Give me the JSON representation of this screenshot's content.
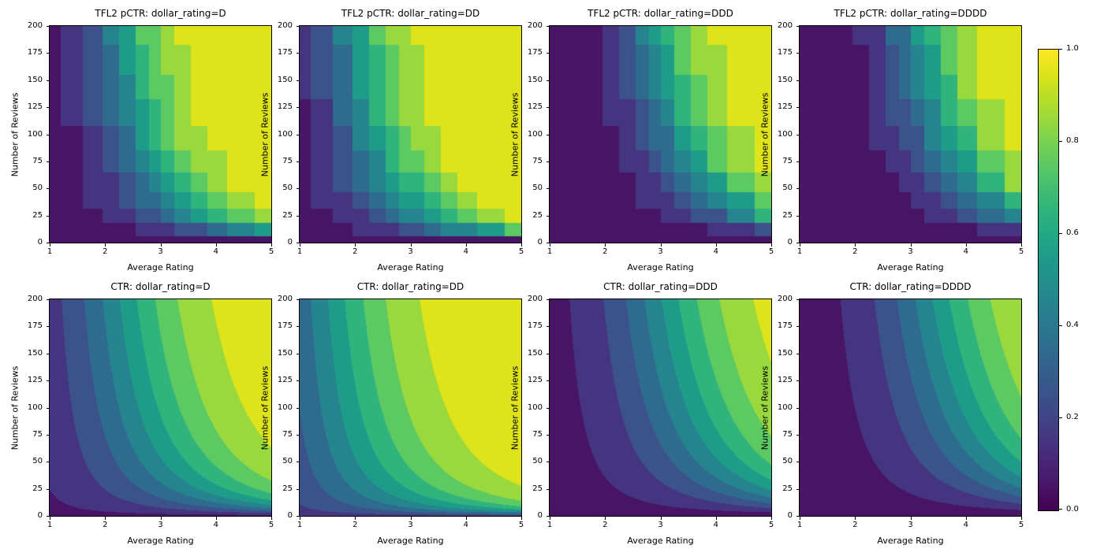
{
  "figure": {
    "background": "#ffffff",
    "text_color": "#000000"
  },
  "colormap": {
    "name": "viridis",
    "stops": [
      "#440154",
      "#481567",
      "#482677",
      "#453781",
      "#404788",
      "#39568c",
      "#33638d",
      "#2d708e",
      "#287d8e",
      "#238a8d",
      "#1f968b",
      "#20a387",
      "#29af7f",
      "#3cbb75",
      "#55c667",
      "#73d055",
      "#95d840",
      "#b8de29",
      "#dce319",
      "#fde725"
    ]
  },
  "levels": [
    0.0,
    0.1,
    0.2,
    0.3,
    0.4,
    0.5,
    0.6,
    0.7,
    0.8,
    0.9,
    1.0
  ],
  "axes": {
    "xlabel": "Average Rating",
    "ylabel": "Number of Reviews",
    "xlim": [
      1,
      5
    ],
    "ylim": [
      0,
      200
    ],
    "xticks": [
      1,
      2,
      3,
      4,
      5
    ],
    "yticks": [
      0,
      25,
      50,
      75,
      100,
      125,
      150,
      175,
      200
    ]
  },
  "colorbar": {
    "min": 0.0,
    "max": 1.0,
    "ticks": [
      "0.0",
      "0.2",
      "0.4",
      "0.6",
      "0.8",
      "1.0"
    ]
  },
  "lattice": {
    "r_keypoints": [
      1,
      1.4,
      1.8,
      2.1,
      2.4,
      2.7,
      2.9,
      3.1,
      3.4,
      3.7,
      4.0,
      4.4,
      5.0
    ],
    "n_keypoints": [
      0,
      12,
      25,
      38,
      55,
      75,
      95,
      120,
      145,
      165,
      200
    ]
  },
  "chart_data": [
    {
      "type": "contour",
      "title": "TFL2 pCTR: dollar_rating=D",
      "xlabel": "Average Rating",
      "ylabel": "Number of Reviews",
      "xlim": [
        1,
        5
      ],
      "ylim": [
        0,
        200
      ],
      "model": {
        "kind": "lattice-step",
        "gain": 1.6,
        "baseline": 3.0,
        "formula": "sigmoid(gain*(avg_rating_q*log1p(num_reviews_q)/4 - baseline))"
      },
      "grid": {
        "x": [
          1,
          2,
          3,
          4,
          5
        ],
        "y": [
          0,
          50,
          100,
          150,
          200
        ],
        "values_row_order": "y-ascending",
        "values": [
          [
            0.008,
            0.008,
            0.008,
            0.008,
            0.008
          ],
          [
            0.038,
            0.161,
            0.48,
            0.816,
            0.955
          ],
          [
            0.05,
            0.249,
            0.677,
            0.93,
            0.988
          ],
          [
            0.058,
            0.313,
            0.772,
            0.962,
            0.995
          ],
          [
            0.064,
            0.364,
            0.827,
            0.975,
            0.997
          ]
        ]
      }
    },
    {
      "type": "contour",
      "title": "TFL2 pCTR: dollar_rating=DD",
      "xlabel": "Average Rating",
      "ylabel": "Number of Reviews",
      "xlim": [
        1,
        5
      ],
      "ylim": [
        0,
        200
      ],
      "model": {
        "kind": "lattice-step",
        "gain": 1.6,
        "baseline": 2.6,
        "formula": "sigmoid(gain*(avg_rating_q*log1p(num_reviews_q)/4 - baseline))"
      },
      "grid": {
        "x": [
          1,
          2,
          3,
          4,
          5
        ],
        "y": [
          0,
          50,
          100,
          150,
          200
        ],
        "values_row_order": "y-ascending",
        "values": [
          [
            0.015,
            0.015,
            0.015,
            0.015,
            0.015
          ],
          [
            0.07,
            0.266,
            0.636,
            0.894,
            0.976
          ],
          [
            0.09,
            0.385,
            0.799,
            0.962,
            0.994
          ],
          [
            0.104,
            0.464,
            0.865,
            0.979,
            0.997
          ],
          [
            0.115,
            0.521,
            0.9,
            0.987,
            0.998
          ]
        ]
      }
    },
    {
      "type": "contour",
      "title": "TFL2 pCTR: dollar_rating=DDD",
      "xlabel": "Average Rating",
      "ylabel": "Number of Reviews",
      "xlim": [
        1,
        5
      ],
      "ylim": [
        0,
        200
      ],
      "model": {
        "kind": "lattice-step",
        "gain": 1.6,
        "baseline": 3.8,
        "formula": "sigmoid(gain*(avg_rating_q*log1p(num_reviews_q)/4 - baseline))"
      },
      "grid": {
        "x": [
          1,
          2,
          3,
          4,
          5
        ],
        "y": [
          0,
          50,
          100,
          150,
          200
        ],
        "values_row_order": "y-ascending",
        "values": [
          [
            0.002,
            0.002,
            0.002,
            0.002,
            0.002
          ],
          [
            0.011,
            0.051,
            0.204,
            0.553,
            0.856
          ],
          [
            0.014,
            0.084,
            0.368,
            0.787,
            0.959
          ],
          [
            0.017,
            0.112,
            0.485,
            0.875,
            0.981
          ],
          [
            0.019,
            0.137,
            0.57,
            0.917,
            0.989
          ]
        ]
      }
    },
    {
      "type": "contour",
      "title": "TFL2 pCTR: dollar_rating=DDDD",
      "xlabel": "Average Rating",
      "ylabel": "Number of Reviews",
      "xlim": [
        1,
        5
      ],
      "ylim": [
        0,
        200
      ],
      "model": {
        "kind": "lattice-step",
        "gain": 1.6,
        "baseline": 4.1,
        "formula": "sigmoid(gain*(avg_rating_q*log1p(num_reviews_q)/4 - baseline))"
      },
      "grid": {
        "x": [
          1,
          2,
          3,
          4,
          5
        ],
        "y": [
          0,
          50,
          100,
          150,
          200
        ],
        "values_row_order": "y-ascending",
        "values": [
          [
            0.001,
            0.001,
            0.001,
            0.001,
            0.001
          ],
          [
            0.007,
            0.032,
            0.137,
            0.433,
            0.787
          ],
          [
            0.009,
            0.054,
            0.265,
            0.695,
            0.935
          ],
          [
            0.01,
            0.073,
            0.368,
            0.813,
            0.97
          ],
          [
            0.012,
            0.09,
            0.451,
            0.873,
            0.983
          ]
        ]
      }
    },
    {
      "type": "contour",
      "title": "CTR: dollar_rating=D",
      "xlabel": "Average Rating",
      "ylabel": "Number of Reviews",
      "xlim": [
        1,
        5
      ],
      "ylim": [
        0,
        200
      ],
      "model": {
        "kind": "smooth",
        "gain": 1.0,
        "baseline": 3.0,
        "formula": "sigmoid(gain*(avg_rating*log1p(num_reviews)/4 - baseline))"
      },
      "grid": {
        "x": [
          1,
          2,
          3,
          4,
          5
        ],
        "y": [
          0,
          50,
          100,
          150,
          200
        ],
        "values_row_order": "y-ascending",
        "values": [
          [
            0.047,
            0.047,
            0.047,
            0.047,
            0.047
          ],
          [
            0.117,
            0.262,
            0.487,
            0.718,
            0.872
          ],
          [
            0.136,
            0.334,
            0.613,
            0.834,
            0.941
          ],
          [
            0.149,
            0.38,
            0.682,
            0.883,
            0.963
          ],
          [
            0.158,
            0.414,
            0.726,
            0.909,
            0.974
          ]
        ]
      }
    },
    {
      "type": "contour",
      "title": "CTR: dollar_rating=DD",
      "xlabel": "Average Rating",
      "ylabel": "Number of Reviews",
      "xlim": [
        1,
        5
      ],
      "ylim": [
        0,
        200
      ],
      "model": {
        "kind": "smooth",
        "gain": 1.0,
        "baseline": 2.0,
        "formula": "sigmoid(gain*(avg_rating*log1p(num_reviews)/4 - baseline))"
      },
      "grid": {
        "x": [
          1,
          2,
          3,
          4,
          5
        ],
        "y": [
          0,
          50,
          100,
          150,
          200
        ],
        "values_row_order": "y-ascending",
        "values": [
          [
            0.119,
            0.119,
            0.119,
            0.119,
            0.119
          ],
          [
            0.266,
            0.491,
            0.721,
            0.873,
            0.949
          ],
          [
            0.299,
            0.576,
            0.812,
            0.932,
            0.977
          ],
          [
            0.322,
            0.625,
            0.854,
            0.953,
            0.986
          ],
          [
            0.338,
            0.657,
            0.878,
            0.964,
            0.99
          ]
        ]
      }
    },
    {
      "type": "contour",
      "title": "CTR: dollar_rating=DDD",
      "xlabel": "Average Rating",
      "ylabel": "Number of Reviews",
      "xlim": [
        1,
        5
      ],
      "ylim": [
        0,
        200
      ],
      "model": {
        "kind": "smooth",
        "gain": 1.0,
        "baseline": 4.0,
        "formula": "sigmoid(gain*(avg_rating*log1p(num_reviews)/4 - baseline))"
      },
      "grid": {
        "x": [
          1,
          2,
          3,
          4,
          5
        ],
        "y": [
          0,
          50,
          100,
          150,
          200
        ],
        "values_row_order": "y-ascending",
        "values": [
          [
            0.018,
            0.018,
            0.018,
            0.018,
            0.018
          ],
          [
            0.047,
            0.116,
            0.259,
            0.483,
            0.714
          ],
          [
            0.055,
            0.155,
            0.368,
            0.649,
            0.854
          ],
          [
            0.06,
            0.184,
            0.441,
            0.734,
            0.906
          ],
          [
            0.064,
            0.206,
            0.494,
            0.786,
            0.933
          ]
        ]
      }
    },
    {
      "type": "contour",
      "title": "CTR: dollar_rating=DDDD",
      "xlabel": "Average Rating",
      "ylabel": "Number of Reviews",
      "xlim": [
        1,
        5
      ],
      "ylim": [
        0,
        200
      ],
      "model": {
        "kind": "smooth",
        "gain": 1.0,
        "baseline": 4.5,
        "formula": "sigmoid(gain*(avg_rating*log1p(num_reviews)/4 - baseline))"
      },
      "grid": {
        "x": [
          1,
          2,
          3,
          4,
          5
        ],
        "y": [
          0,
          50,
          100,
          150,
          200
        ],
        "values_row_order": "y-ascending",
        "values": [
          [
            0.011,
            0.011,
            0.011,
            0.011,
            0.011
          ],
          [
            0.029,
            0.073,
            0.175,
            0.362,
            0.603
          ],
          [
            0.034,
            0.1,
            0.261,
            0.529,
            0.781
          ],
          [
            0.037,
            0.12,
            0.324,
            0.626,
            0.854
          ],
          [
            0.04,
            0.136,
            0.372,
            0.691,
            0.894
          ]
        ]
      }
    }
  ]
}
